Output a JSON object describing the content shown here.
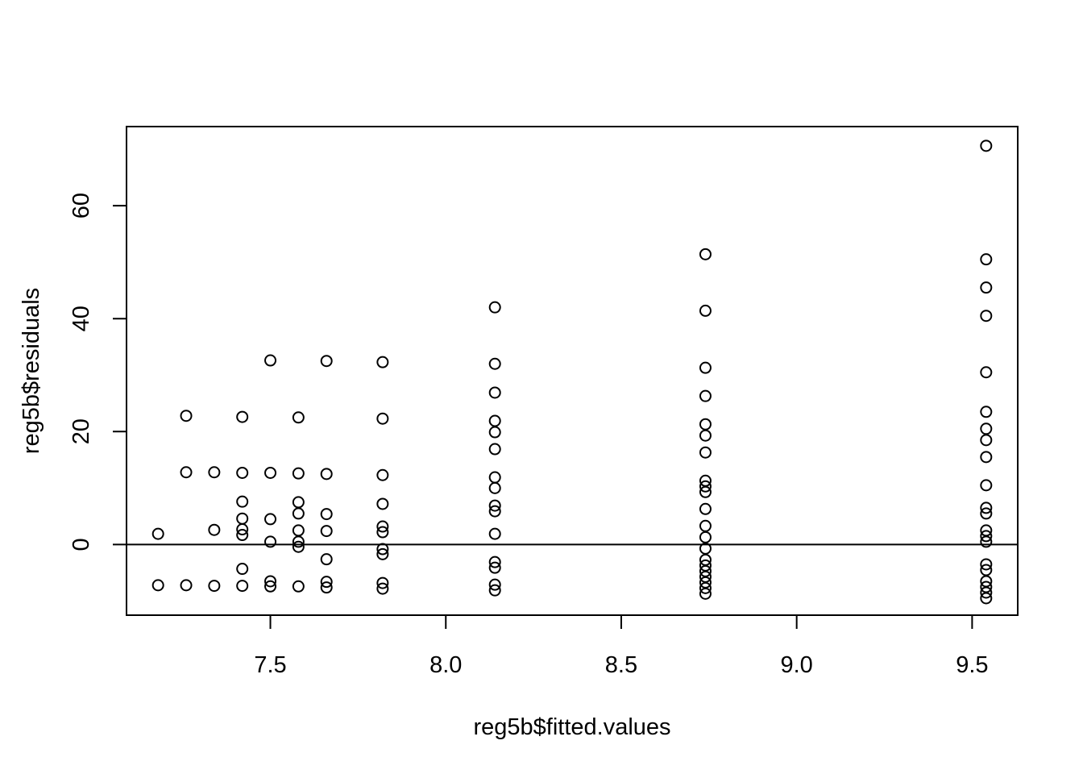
{
  "chart_data": {
    "type": "scatter",
    "title": "",
    "xlabel": "reg5b$fitted.values",
    "ylabel": "reg5b$residuals",
    "xlim": [
      7.09,
      9.63
    ],
    "ylim": [
      -12.5,
      74.0
    ],
    "x_ticks": [
      7.5,
      8.0,
      8.5,
      9.0,
      9.5
    ],
    "x_tick_labels": [
      "7.5",
      "8.0",
      "8.5",
      "9.0",
      "9.5"
    ],
    "y_ticks": [
      0,
      20,
      40,
      60
    ],
    "y_tick_labels": [
      "0",
      "20",
      "40",
      "60"
    ],
    "reference_line": {
      "orientation": "horizontal",
      "y": 0
    },
    "grid": false,
    "legend": "none",
    "marker": "open-circle",
    "color": "#000000",
    "points": [
      [
        7.18,
        1.9
      ],
      [
        7.18,
        -7.2
      ],
      [
        7.26,
        22.8
      ],
      [
        7.26,
        12.8
      ],
      [
        7.26,
        -7.2
      ],
      [
        7.34,
        12.8
      ],
      [
        7.34,
        2.6
      ],
      [
        7.34,
        -7.3
      ],
      [
        7.42,
        22.6
      ],
      [
        7.42,
        12.7
      ],
      [
        7.42,
        7.6
      ],
      [
        7.42,
        4.6
      ],
      [
        7.42,
        2.7
      ],
      [
        7.42,
        1.7
      ],
      [
        7.42,
        -4.3
      ],
      [
        7.42,
        -7.3
      ],
      [
        7.5,
        32.6
      ],
      [
        7.5,
        12.7
      ],
      [
        7.5,
        4.5
      ],
      [
        7.5,
        0.5
      ],
      [
        7.5,
        -6.5
      ],
      [
        7.5,
        -7.4
      ],
      [
        7.58,
        22.5
      ],
      [
        7.58,
        12.6
      ],
      [
        7.58,
        7.5
      ],
      [
        7.58,
        5.5
      ],
      [
        7.58,
        2.5
      ],
      [
        7.58,
        0.5
      ],
      [
        7.58,
        -0.4
      ],
      [
        7.58,
        -7.4
      ],
      [
        7.66,
        32.5
      ],
      [
        7.66,
        12.5
      ],
      [
        7.66,
        5.4
      ],
      [
        7.66,
        2.4
      ],
      [
        7.66,
        -2.6
      ],
      [
        7.66,
        -6.6
      ],
      [
        7.66,
        -7.6
      ],
      [
        7.82,
        32.3
      ],
      [
        7.82,
        22.3
      ],
      [
        7.82,
        12.3
      ],
      [
        7.82,
        7.2
      ],
      [
        7.82,
        3.2
      ],
      [
        7.82,
        2.2
      ],
      [
        7.82,
        -0.8
      ],
      [
        7.82,
        -1.7
      ],
      [
        7.82,
        -6.8
      ],
      [
        7.82,
        -7.8
      ],
      [
        8.14,
        42.0
      ],
      [
        8.14,
        32.0
      ],
      [
        8.14,
        26.9
      ],
      [
        8.14,
        21.9
      ],
      [
        8.14,
        19.9
      ],
      [
        8.14,
        16.9
      ],
      [
        8.14,
        11.9
      ],
      [
        8.14,
        10.0
      ],
      [
        8.14,
        6.9
      ],
      [
        8.14,
        5.9
      ],
      [
        8.14,
        1.9
      ],
      [
        8.14,
        -3.1
      ],
      [
        8.14,
        -4.1
      ],
      [
        8.14,
        -7.1
      ],
      [
        8.14,
        -8.1
      ],
      [
        8.74,
        51.4
      ],
      [
        8.74,
        41.4
      ],
      [
        8.74,
        31.3
      ],
      [
        8.74,
        26.3
      ],
      [
        8.74,
        21.3
      ],
      [
        8.74,
        19.3
      ],
      [
        8.74,
        16.3
      ],
      [
        8.74,
        11.3
      ],
      [
        8.74,
        10.3
      ],
      [
        8.74,
        9.3
      ],
      [
        8.74,
        6.3
      ],
      [
        8.74,
        3.3
      ],
      [
        8.74,
        1.3
      ],
      [
        8.74,
        -0.7
      ],
      [
        8.74,
        -2.7
      ],
      [
        8.74,
        -3.7
      ],
      [
        8.74,
        -4.7
      ],
      [
        8.74,
        -5.7
      ],
      [
        8.74,
        -6.7
      ],
      [
        8.74,
        -7.7
      ],
      [
        8.74,
        -8.7
      ],
      [
        9.54,
        70.6
      ],
      [
        9.54,
        50.5
      ],
      [
        9.54,
        45.5
      ],
      [
        9.54,
        40.5
      ],
      [
        9.54,
        30.5
      ],
      [
        9.54,
        23.5
      ],
      [
        9.54,
        20.5
      ],
      [
        9.54,
        18.5
      ],
      [
        9.54,
        15.5
      ],
      [
        9.54,
        10.5
      ],
      [
        9.54,
        6.5
      ],
      [
        9.54,
        5.5
      ],
      [
        9.54,
        2.5
      ],
      [
        9.54,
        1.5
      ],
      [
        9.54,
        0.5
      ],
      [
        9.54,
        -3.5
      ],
      [
        9.54,
        -4.5
      ],
      [
        9.54,
        -6.5
      ],
      [
        9.54,
        -7.5
      ],
      [
        9.54,
        -8.5
      ],
      [
        9.54,
        -9.5
      ]
    ]
  }
}
